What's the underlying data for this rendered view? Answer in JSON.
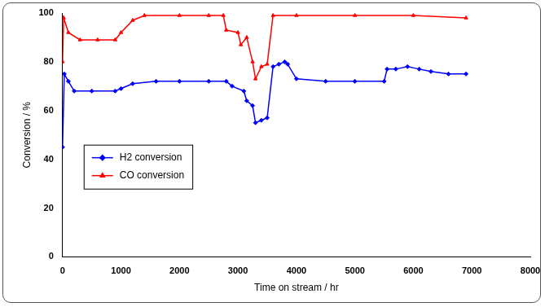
{
  "chart_data": {
    "type": "line",
    "x_label": "Time on stream / hr",
    "y_label": "Conversion / %",
    "xlim": [
      0,
      8000
    ],
    "xticks": [
      0,
      1000,
      2000,
      3000,
      4000,
      5000,
      6000,
      7000,
      8000
    ],
    "ylim": [
      0,
      100
    ],
    "yticks": [
      0,
      20,
      40,
      60,
      80,
      100
    ],
    "grid": false,
    "legend": "left",
    "series": [
      {
        "name": "H2 conversion",
        "color": "#0000ff",
        "marker": "diamond",
        "line_style": "solid",
        "x": [
          0,
          30,
          100,
          200,
          500,
          900,
          1000,
          1200,
          1600,
          2000,
          2500,
          2800,
          2900,
          3100,
          3150,
          3250,
          3300,
          3400,
          3500,
          3600,
          3700,
          3800,
          3850,
          4000,
          4500,
          5000,
          5500,
          5550,
          5700,
          5900,
          6100,
          6300,
          6600,
          6900
        ],
        "values": [
          45,
          75,
          72,
          68,
          68,
          68,
          69,
          71,
          72,
          72,
          72,
          72,
          70,
          68,
          64,
          62,
          55,
          56,
          57,
          78,
          79,
          80,
          79,
          73,
          72,
          72,
          72,
          77,
          77,
          78,
          77,
          76,
          75,
          75
        ]
      },
      {
        "name": "CO conversion",
        "color": "#ff0000",
        "marker": "triangle",
        "line_style": "solid",
        "x": [
          0,
          20,
          100,
          300,
          600,
          900,
          1000,
          1200,
          1400,
          2000,
          2500,
          2750,
          2800,
          3000,
          3050,
          3150,
          3250,
          3300,
          3400,
          3500,
          3600,
          4000,
          5000,
          6000,
          6900
        ],
        "values": [
          80,
          98,
          92,
          89,
          89,
          89,
          92,
          97,
          99,
          99,
          99,
          99,
          93,
          92,
          87,
          90,
          80,
          73,
          78,
          79,
          99,
          99,
          99,
          99,
          98
        ]
      }
    ]
  }
}
